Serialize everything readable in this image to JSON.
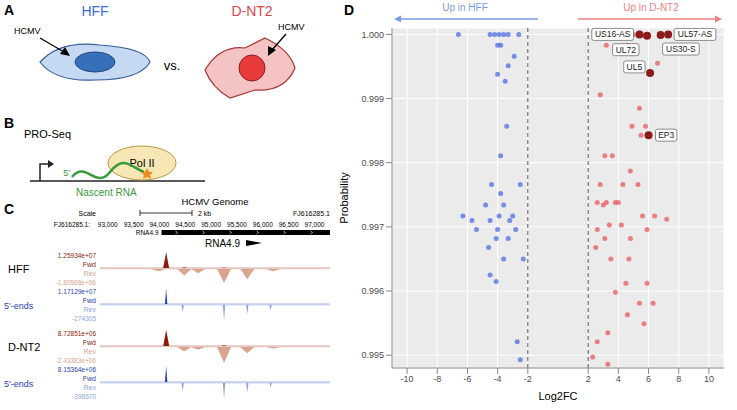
{
  "panels": {
    "A": {
      "letter": "A",
      "left_label": "HFF",
      "right_label": "D-NT2",
      "separator": "vs.",
      "virus_label": "HCMV",
      "left_color": "#3c6fd6",
      "right_color": "#e0444a"
    },
    "B": {
      "letter": "B",
      "title": "PRO-Seq",
      "pol_label": "Pol II",
      "end_label": "5'",
      "rna_label": "Nascent RNA",
      "rna_color": "#3a9a3a"
    },
    "C": {
      "letter": "C",
      "assembly": "HCMV Genome",
      "scale_label": "Scale",
      "scale_bar": "2 kb",
      "chrom": "FJ616285.1:",
      "chrom_end": "FJ616285.1",
      "xlim": [
        92850,
        97300
      ],
      "positions": [
        {
          "value": 93000,
          "label": "93,000"
        },
        {
          "value": 93500,
          "label": "93,500"
        },
        {
          "value": 94000,
          "label": "94,000"
        },
        {
          "value": 94500,
          "label": "94,500"
        },
        {
          "value": 95000,
          "label": "95,000"
        },
        {
          "value": 95500,
          "label": "95,500"
        },
        {
          "value": 96000,
          "label": "96,000"
        },
        {
          "value": 96500,
          "label": "96,500"
        },
        {
          "value": 97000,
          "label": "97,000"
        }
      ],
      "gene": {
        "name": "RNA4.9",
        "start": 94040,
        "end": 97300
      },
      "gene_label": "RNA4.9",
      "samples": [
        {
          "name": "HFF",
          "coverage": {
            "fwd": {
              "label": "Fwd",
              "color": "#8b1c0c",
              "range": {
                "value": 12593400,
                "label": "1.25934e+07"
              },
              "peaks": [
                {
                  "x": 94130,
                  "y": 12500000
                },
                {
                  "x": 94480,
                  "y": 500000
                },
                {
                  "x": 95250,
                  "y": 400000
                }
              ]
            },
            "rev": {
              "label": "Rev",
              "color": "#d9a58f",
              "range": {
                "value": -1805680,
                "label": "-1.80568e+06"
              },
              "peaks": [
                {
                  "x": 93980,
                  "y": -250000
                },
                {
                  "x": 94480,
                  "y": -700000
                },
                {
                  "x": 94750,
                  "y": -450000
                },
                {
                  "x": 95250,
                  "y": -1500000
                },
                {
                  "x": 95700,
                  "y": -1100000
                },
                {
                  "x": 96200,
                  "y": -250000
                }
              ]
            }
          },
          "ends": {
            "name": "5'-ends",
            "color": "#1f3fb3",
            "fwd": {
              "label": "Fwd",
              "color": "#1f3fb3",
              "range": {
                "value": 11712900,
                "label": "1.17129e+07"
              },
              "peaks": [
                {
                  "x": 94130,
                  "y": 11500000
                }
              ]
            },
            "rev": {
              "label": "Rev",
              "color": "#8ea4dc",
              "range": -274305,
              "peaks": [
                {
                  "x": 94450,
                  "y": -120000
                },
                {
                  "x": 95250,
                  "y": -260000
                },
                {
                  "x": 95700,
                  "y": -150000
                },
                {
                  "x": 96150,
                  "y": -80000
                }
              ]
            }
          }
        },
        {
          "name": "D-NT2",
          "coverage": {
            "fwd": {
              "label": "Fwd",
              "color": "#8b1c0c",
              "range": {
                "value": 8728510,
                "label": "8.72851e+06"
              },
              "peaks": [
                {
                  "x": 94130,
                  "y": 8700000
                },
                {
                  "x": 95250,
                  "y": 450000
                }
              ]
            },
            "rev": {
              "label": "Rev",
              "color": "#d9a58f",
              "range": {
                "value": -2433830,
                "label": "-2.43383e+06"
              },
              "peaks": [
                {
                  "x": 94480,
                  "y": -650000
                },
                {
                  "x": 94750,
                  "y": -400000
                },
                {
                  "x": 95250,
                  "y": -2300000
                },
                {
                  "x": 95700,
                  "y": -900000
                },
                {
                  "x": 96200,
                  "y": -200000
                }
              ]
            }
          },
          "ends": {
            "name": "5'-ends",
            "color": "#1f3fb3",
            "fwd": {
              "label": "Fwd",
              "color": "#1f3fb3",
              "range": {
                "value": 8153640,
                "label": "8.15364e+06"
              },
              "peaks": [
                {
                  "x": 94130,
                  "y": 8100000
                }
              ]
            },
            "rev": {
              "label": "Rev",
              "color": "#8ea4dc",
              "range": -398670,
              "peaks": [
                {
                  "x": 94450,
                  "y": -200000
                },
                {
                  "x": 95250,
                  "y": -380000
                },
                {
                  "x": 95700,
                  "y": -220000
                },
                {
                  "x": 96150,
                  "y": -100000
                }
              ]
            }
          }
        }
      ]
    }
  },
  "chart_data": {
    "type": "scatter",
    "letter": "D",
    "x_label": "Log2FC",
    "y_label": "Probability",
    "grid": true,
    "xlim": [
      -11,
      11
    ],
    "xticks": [
      -10,
      -8,
      -6,
      -4,
      -2,
      2,
      4,
      6,
      8,
      10
    ],
    "ylim": [
      0.9948,
      1.0001
    ],
    "yticks": [
      0.995,
      0.996,
      0.997,
      0.998,
      0.999,
      {
        "value": 1,
        "label": "1.000"
      }
    ],
    "thresholds": [
      -2,
      2
    ],
    "annotations": [
      {
        "text": "Up in HFF",
        "color": "#7b9be8"
      },
      {
        "text": "Up in D-NT2",
        "color": "#ee7f84"
      }
    ],
    "series": [
      {
        "color": "#4d6ee3",
        "x": [
          -3.9,
          -6.6,
          -4.5,
          -4.2,
          -3.6,
          -3.3,
          -2.6,
          -4.0,
          -3.8,
          -2.9,
          -3.3,
          -4.0,
          -3.5,
          -3.4,
          -3.8,
          -4.4,
          -2.5,
          -3.8,
          -4.8,
          -3.6,
          -6.3,
          -3.9,
          -3.0,
          -5.7,
          -4.5,
          -3.2,
          -5.4,
          -4.0,
          -2.8,
          -4.1,
          -3.3,
          -4.6,
          -3.6,
          -2.3,
          -4.5,
          -4.1,
          -2.7,
          -2.5
        ],
        "y": [
          1.0,
          1.0,
          1.0,
          1.0,
          1.0,
          1.0,
          1.0,
          0.99983,
          0.99983,
          0.99966,
          0.99951,
          0.99938,
          0.99927,
          0.99857,
          0.99811,
          0.99766,
          0.99766,
          0.99752,
          0.99734,
          0.99734,
          0.99717,
          0.99717,
          0.99717,
          0.9971,
          0.9971,
          0.9971,
          0.99696,
          0.99696,
          0.99696,
          0.99682,
          0.99682,
          0.99668,
          0.9965,
          0.9965,
          0.99625,
          0.99615,
          0.99521,
          0.99493
        ]
      },
      {
        "color": "#e8595f",
        "x": [
          2.5,
          3.5,
          4.0,
          4.4,
          5.0,
          3.2,
          4.6,
          6.6,
          2.8,
          5.4,
          4.9,
          5.8,
          5.5,
          3.1,
          3.6,
          4.8,
          2.8,
          4.3,
          5.3,
          2.6,
          3.2,
          3.8,
          4.0,
          3.0,
          5.6,
          6.4,
          7.2,
          3.4,
          4.2,
          2.6,
          5.9,
          3.1,
          4.8,
          2.5,
          3.5,
          4.7,
          4.5,
          5.9,
          3.8,
          5.4,
          6.3,
          4.6,
          5.7,
          3.3,
          2.6,
          2.3,
          3.3
        ],
        "y": [
          1.0,
          1.0,
          1.0,
          1.0,
          1.0,
          0.99983,
          0.99983,
          0.99955,
          0.99906,
          0.99885,
          0.99857,
          0.99857,
          0.99843,
          0.99811,
          0.99811,
          0.99787,
          0.99766,
          0.99766,
          0.99766,
          0.99738,
          0.99738,
          0.99738,
          0.99738,
          0.99734,
          0.99717,
          0.99717,
          0.99712,
          0.99703,
          0.99703,
          0.99696,
          0.99696,
          0.99682,
          0.99682,
          0.99668,
          0.9965,
          0.9965,
          0.99612,
          0.99612,
          0.99598,
          0.99581,
          0.99581,
          0.99563,
          0.99549,
          0.99535,
          0.99521,
          0.99497,
          0.99486
        ]
      },
      {
        "color": "#8b1a1a",
        "x": [
          5.4,
          5.9,
          6.8,
          7.3,
          6.1,
          6.0
        ],
        "y": [
          1.0,
          0.99998,
          0.99999,
          1.0,
          0.9994,
          0.99843
        ],
        "labels": [
          "US16-AS",
          "UL72",
          "US30-S",
          "UL57-AS",
          "UL5",
          "EP3"
        ]
      }
    ]
  }
}
